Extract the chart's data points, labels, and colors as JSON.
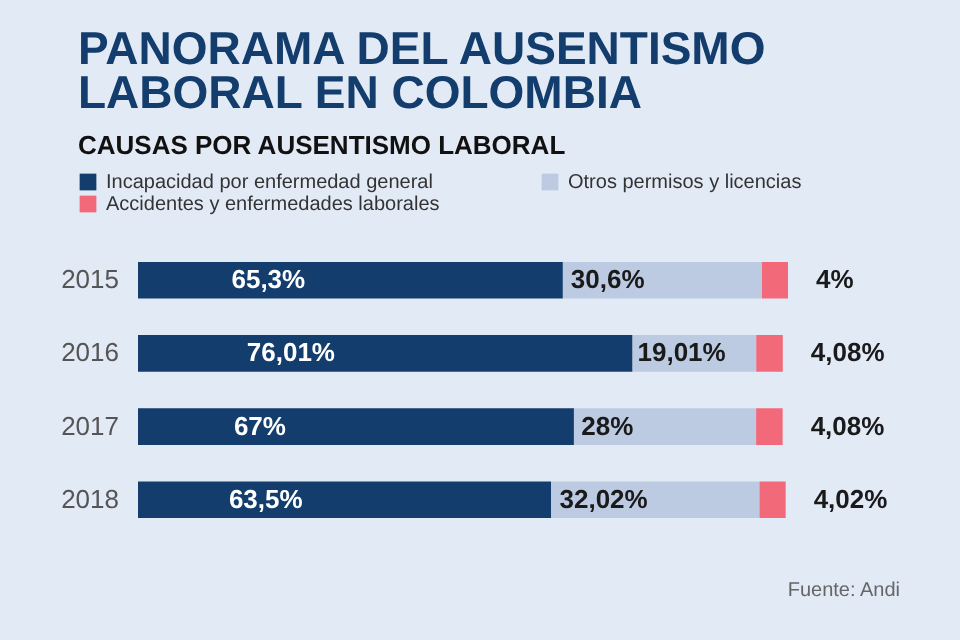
{
  "chart_data": {
    "type": "bar",
    "orientation": "horizontal",
    "stacked": true,
    "title": "PANORAMA DEL AUSENTISMO LABORAL EN COLOMBIA",
    "subtitle": "CAUSAS POR AUSENTISMO LABORAL",
    "categories": [
      "2015",
      "2016",
      "2017",
      "2018"
    ],
    "series": [
      {
        "name": "Incapacidad por enfermedad general",
        "color": "#123d6c",
        "values": [
          65.3,
          76.01,
          67,
          63.5
        ],
        "value_labels": [
          "65,3%",
          "76,01%",
          "67%",
          "63,5%"
        ]
      },
      {
        "name": "Otros permisos y licencias",
        "color": "#bccae2",
        "values": [
          30.6,
          19.01,
          28,
          32.02
        ],
        "value_labels": [
          "30,6%",
          "19,01%",
          "28%",
          "32,02%"
        ]
      },
      {
        "name": "Accidentes y enfermedades laborales",
        "color": "#f26a7a",
        "values": [
          4,
          4.08,
          4.08,
          4.02
        ],
        "value_labels": [
          "4%",
          "4,08%",
          "4,08%",
          "4,02%"
        ]
      }
    ],
    "legend": "top left",
    "annotations": [
      "Fuente: Andi"
    ]
  }
}
